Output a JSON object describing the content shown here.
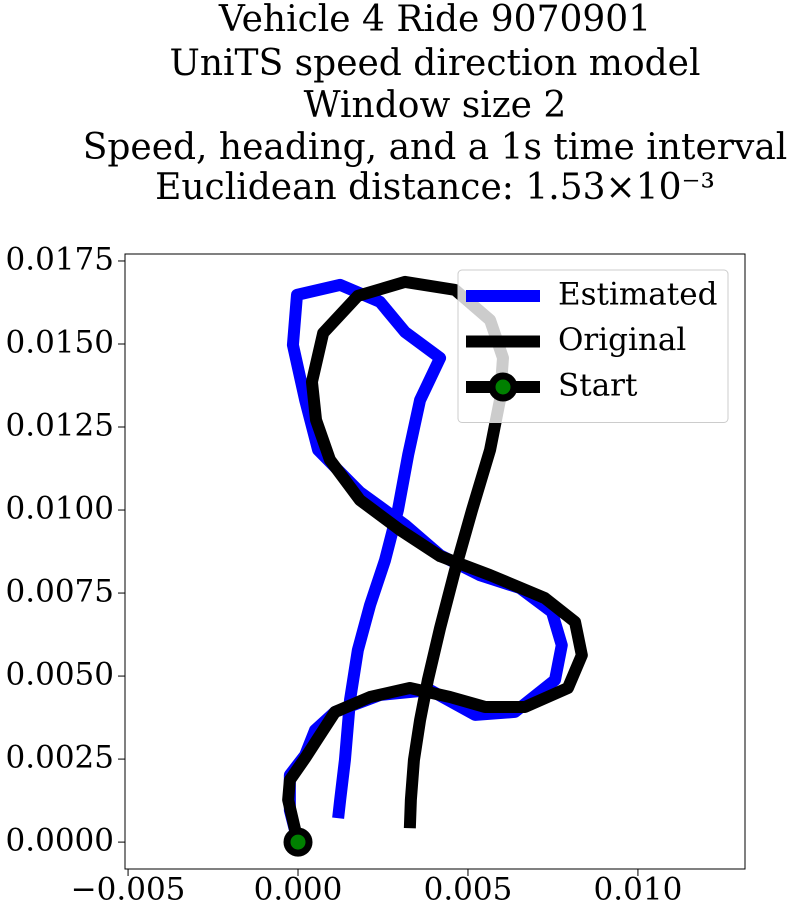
{
  "chart_data": {
    "type": "line",
    "title": [
      "Vehicle 4 Ride 9070901",
      "UniTS speed direction model",
      "Window size 2",
      "Speed, heading, and a 1s time interval",
      "Euclidean distance: 1.53×10⁻³"
    ],
    "xlim": [
      -0.00509,
      0.01315
    ],
    "ylim": [
      -0.00081,
      0.01771
    ],
    "xticks": [
      {
        "value": -0.005,
        "label": "−0.005"
      },
      {
        "value": 0,
        "label": "0.000"
      },
      0.005,
      {
        "value": 0.01,
        "label": "0.010"
      }
    ],
    "yticks": [
      {
        "value": 0,
        "label": "0.0000"
      },
      0.0025,
      {
        "value": 0.005,
        "label": "0.0050"
      },
      0.0075,
      {
        "value": 0.01,
        "label": "0.0100"
      },
      0.0125,
      {
        "value": 0.015,
        "label": "0.0150"
      },
      0.0175
    ],
    "legend": "upper right",
    "series": [
      {
        "name": "Estimated",
        "color": "#0000ff",
        "x": [
          0,
          -0.00024,
          -0.00024,
          0.00021,
          0.0005,
          0.00109,
          0.00241,
          0.00388,
          0.00521,
          0.00638,
          0.00756,
          0.00776,
          0.00747,
          0.00653,
          0.00535,
          0.00418,
          0.00315,
          0.00182,
          0.00059,
          0.00021,
          -0.00015,
          -3e-05,
          0.00124,
          0.00241,
          0.00315,
          0.00418,
          0.00359,
          0.00324,
          0.00294,
          0.00256,
          0.00212,
          0.00176,
          0.00153,
          0.00138,
          0.00124,
          0.00118
        ],
        "values": [
          0,
          0.00096,
          0.00202,
          0.00262,
          0.00337,
          0.00392,
          0.00443,
          0.00458,
          0.00383,
          0.00392,
          0.00488,
          0.00593,
          0.00693,
          0.00765,
          0.00804,
          0.00864,
          0.00955,
          0.01054,
          0.01181,
          0.01331,
          0.01497,
          0.01648,
          0.01678,
          0.01627,
          0.01536,
          0.01458,
          0.01331,
          0.01166,
          0.01,
          0.00849,
          0.00714,
          0.00578,
          0.00428,
          0.00247,
          0.00127,
          0.00072
        ]
      },
      {
        "name": "Original",
        "color": "#000000",
        "x": [
          0,
          -0.00029,
          -0.00024,
          0.00021,
          0.00059,
          0.00109,
          0.00212,
          0.00329,
          0.00447,
          0.0055,
          0.00668,
          0.00794,
          0.00835,
          0.00815,
          0.00726,
          0.00565,
          0.00418,
          0.003,
          0.00182,
          0.00094,
          0.00053,
          0.00041,
          0.00074,
          0.00176,
          0.00315,
          0.00462,
          0.00565,
          0.00603,
          0.00594,
          0.00565,
          0.00512,
          0.00462,
          0.00418,
          0.00382,
          0.00359,
          0.00341,
          0.00332,
          0.00329
        ],
        "values": [
          0,
          0.00127,
          0.00187,
          0.00253,
          0.00313,
          0.00392,
          0.00437,
          0.00464,
          0.00437,
          0.00407,
          0.00407,
          0.00464,
          0.00563,
          0.00663,
          0.00735,
          0.00804,
          0.00861,
          0.0094,
          0.0103,
          0.01151,
          0.01271,
          0.01386,
          0.01533,
          0.01645,
          0.01687,
          0.01663,
          0.01572,
          0.01458,
          0.01331,
          0.01181,
          0.01,
          0.00819,
          0.00645,
          0.00488,
          0.00367,
          0.00247,
          0.00127,
          0.00042
        ]
      },
      {
        "name": "Start",
        "color": "#000000",
        "marker": "o",
        "marker_color": "#008000",
        "x": [
          0
        ],
        "values": [
          0
        ]
      }
    ]
  }
}
